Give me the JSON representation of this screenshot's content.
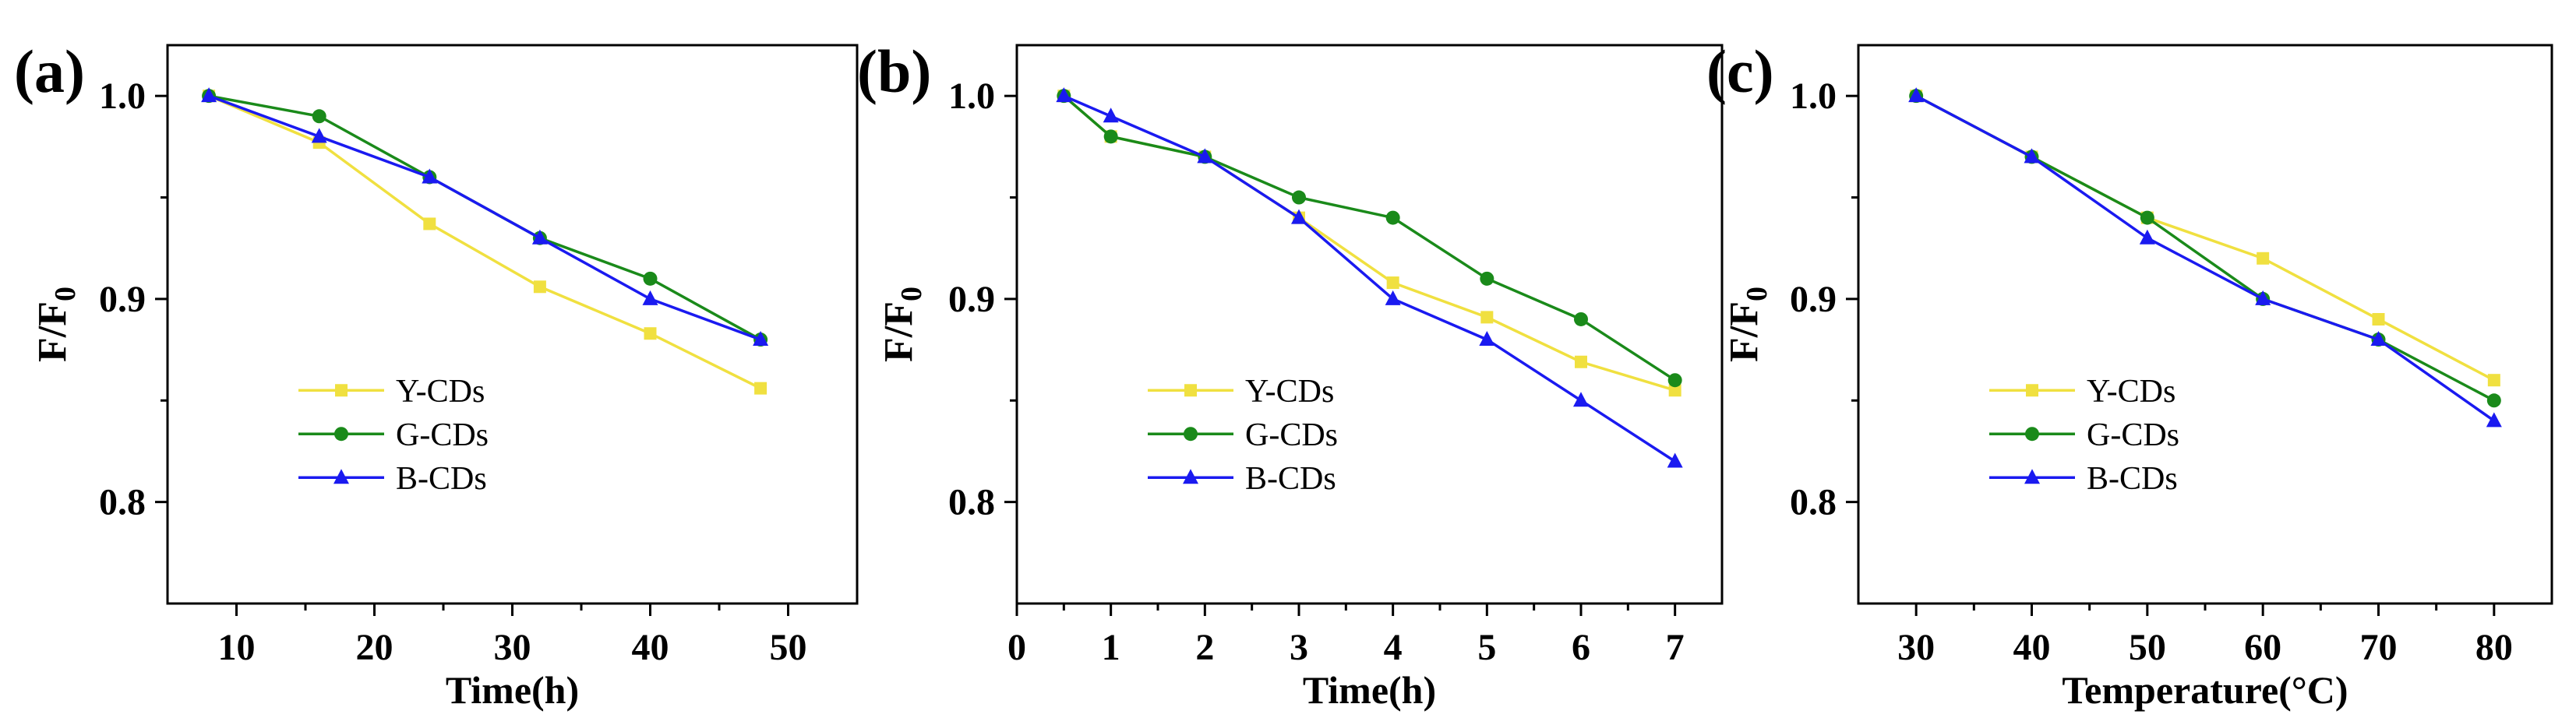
{
  "chart_data": [
    {
      "panel_label": "(a)",
      "type": "line",
      "xlabel": "Time(h)",
      "ylabel": "F/F0",
      "ylabel_main": "F/F",
      "ylabel_sub": "0",
      "xlim": [
        5,
        55
      ],
      "ylim": [
        0.75,
        1.025
      ],
      "xticks": [
        10,
        20,
        30,
        40,
        50
      ],
      "yticks": [
        0.8,
        0.9,
        1.0
      ],
      "ytick_labels": [
        "0.8",
        "0.9",
        "1.0"
      ],
      "x": [
        8,
        16,
        24,
        32,
        40,
        48
      ],
      "series": [
        {
          "name": "Y-CDs",
          "color": "#F0E040",
          "marker": "square",
          "values": [
            1.0,
            0.977,
            0.937,
            0.906,
            0.883,
            0.856
          ]
        },
        {
          "name": "G-CDs",
          "color": "#1A8A1A",
          "marker": "circle",
          "values": [
            1.0,
            0.99,
            0.96,
            0.93,
            0.91,
            0.88
          ]
        },
        {
          "name": "B-CDs",
          "color": "#1A1AF0",
          "marker": "triangle",
          "values": [
            1.0,
            0.98,
            0.96,
            0.93,
            0.9,
            0.88
          ]
        }
      ],
      "legend": "center-left"
    },
    {
      "panel_label": "(b)",
      "type": "line",
      "xlabel": "Time(h)",
      "ylabel": "F/F0",
      "ylabel_main": "F/F",
      "ylabel_sub": "0",
      "xlim": [
        0,
        7.5
      ],
      "ylim": [
        0.75,
        1.025
      ],
      "xticks": [
        0,
        1,
        2,
        3,
        4,
        5,
        6,
        7
      ],
      "yticks": [
        0.8,
        0.9,
        1.0
      ],
      "ytick_labels": [
        "0.8",
        "0.9",
        "1.0"
      ],
      "x": [
        0.5,
        1,
        2,
        3,
        4,
        5,
        6,
        7
      ],
      "series": [
        {
          "name": "Y-CDs",
          "color": "#F0E040",
          "marker": "square",
          "values": [
            1.0,
            0.98,
            0.97,
            0.94,
            0.908,
            0.891,
            0.869,
            0.855
          ]
        },
        {
          "name": "G-CDs",
          "color": "#1A8A1A",
          "marker": "circle",
          "values": [
            1.0,
            0.98,
            0.97,
            0.95,
            0.94,
            0.91,
            0.89,
            0.86
          ]
        },
        {
          "name": "B-CDs",
          "color": "#1A1AF0",
          "marker": "triangle",
          "values": [
            1.0,
            0.99,
            0.97,
            0.94,
            0.9,
            0.88,
            0.85,
            0.82
          ]
        }
      ],
      "legend": "center-left"
    },
    {
      "panel_label": "(c)",
      "type": "line",
      "xlabel": "Temperature(°C)",
      "ylabel": "F/F0",
      "ylabel_main": "F/F",
      "ylabel_sub": "0",
      "xlim": [
        25,
        85
      ],
      "ylim": [
        0.75,
        1.025
      ],
      "xticks": [
        30,
        40,
        50,
        60,
        70,
        80
      ],
      "yticks": [
        0.8,
        0.9,
        1.0
      ],
      "ytick_labels": [
        "0.8",
        "0.9",
        "1.0"
      ],
      "x": [
        30,
        40,
        50,
        60,
        70,
        80
      ],
      "series": [
        {
          "name": "Y-CDs",
          "color": "#F0E040",
          "marker": "square",
          "values": [
            1.0,
            0.97,
            0.94,
            0.92,
            0.89,
            0.86
          ]
        },
        {
          "name": "G-CDs",
          "color": "#1A8A1A",
          "marker": "circle",
          "values": [
            1.0,
            0.97,
            0.94,
            0.9,
            0.88,
            0.85
          ]
        },
        {
          "name": "B-CDs",
          "color": "#1A1AF0",
          "marker": "triangle",
          "values": [
            1.0,
            0.97,
            0.93,
            0.9,
            0.88,
            0.84
          ]
        }
      ],
      "legend": "center-left"
    }
  ]
}
